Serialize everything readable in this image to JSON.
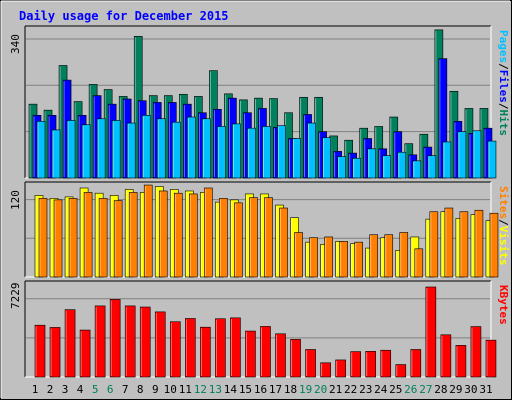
{
  "chart_data": {
    "type": "bar",
    "title": "Daily usage for December 2015",
    "categories": [
      "1",
      "2",
      "3",
      "4",
      "5",
      "6",
      "7",
      "8",
      "9",
      "10",
      "11",
      "12",
      "13",
      "14",
      "15",
      "16",
      "17",
      "18",
      "19",
      "20",
      "21",
      "22",
      "23",
      "24",
      "25",
      "26",
      "27",
      "28",
      "29",
      "30",
      "31"
    ],
    "weekend_days": [
      "5",
      "6",
      "12",
      "13",
      "19",
      "20",
      "26",
      "27"
    ],
    "panels": [
      {
        "id": "top",
        "ymax_label": "340",
        "ymax": 340,
        "right_labels": [
          "Pages",
          "/",
          "Files",
          "/",
          "Hits"
        ],
        "series": [
          {
            "name": "Hits",
            "color": "#00805c",
            "values": [
              172,
              158,
              262,
              178,
              218,
              206,
              190,
              330,
              192,
              192,
              195,
              190,
              250,
              196,
              182,
              186,
              185,
              152,
              188,
              188,
              98,
              88,
              116,
              120,
              142,
              80,
              102,
              345,
              202,
              162,
              162
            ]
          },
          {
            "name": "Files",
            "color": "#0000ff",
            "values": [
              146,
              146,
              228,
              146,
              192,
              172,
              184,
              180,
              176,
              176,
              172,
              152,
              160,
              186,
              152,
              162,
              118,
              92,
              148,
              108,
              62,
              58,
              92,
              68,
              108,
              54,
              72,
              278,
              132,
              104,
              116
            ]
          },
          {
            "name": "Pages",
            "color": "#00c0ff",
            "values": [
              132,
              112,
              134,
              124,
              138,
              134,
              128,
              146,
              138,
              130,
              142,
              138,
              120,
              126,
              116,
              120,
              122,
              92,
              128,
              94,
              50,
              46,
              68,
              52,
              60,
              40,
              52,
              84,
              108,
              110,
              86
            ]
          }
        ]
      },
      {
        "id": "middle",
        "ymax_label": "120",
        "ymax": 120,
        "right_labels": [
          "Sites",
          "/",
          "Visits"
        ],
        "series": [
          {
            "name": "Visits",
            "color": "#ffff00",
            "values": [
              110,
              106,
              108,
              120,
              113,
              110,
              118,
              114,
              122,
              118,
              116,
              114,
              101,
              104,
              112,
              112,
              97,
              80,
              47,
              44,
              48,
              45,
              39,
              53,
              36,
              54,
              78,
              88,
              79,
              84,
              76
            ]
          },
          {
            "name": "Sites",
            "color": "#ff8000",
            "values": [
              106,
              104,
              106,
              114,
              106,
              103,
              114,
              124,
              116,
              113,
              112,
              120,
              106,
              100,
              107,
              107,
              93,
              60,
              53,
              54,
              48,
              47,
              57,
              57,
              60,
              38,
              88,
              93,
              88,
              90,
              86
            ]
          }
        ]
      },
      {
        "id": "bottom",
        "ymax_label": "7229",
        "ymax": 7229,
        "right_labels": [
          "KBytes"
        ],
        "series": [
          {
            "name": "KBytes",
            "color": "#ff0000",
            "values": [
              4160,
              3980,
              5410,
              3770,
              5710,
              6230,
              5710,
              5620,
              5230,
              4440,
              4700,
              4000,
              4680,
              4750,
              3690,
              4060,
              3470,
              3020,
              2210,
              1140,
              1370,
              2040,
              2060,
              2150,
              1000,
              2210,
              7229,
              3390,
              2540,
              4050,
              2960
            ]
          }
        ]
      }
    ],
    "colors": {
      "background": "#c0c0c0",
      "title": "#0000ff",
      "gridline": "#808080",
      "weekday_label": "#000000",
      "weekend_label": "#00805c"
    }
  }
}
